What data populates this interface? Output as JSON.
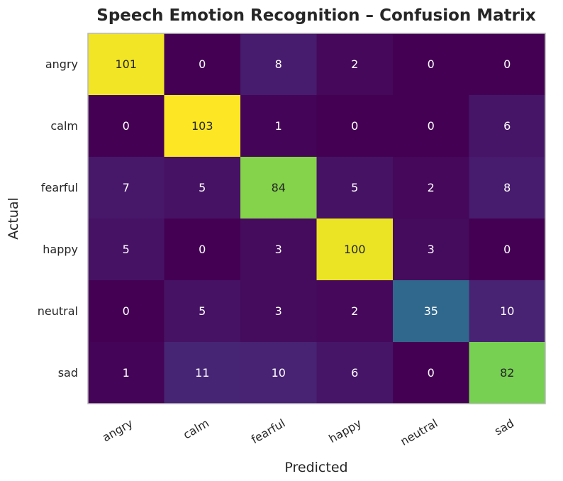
{
  "chart_data": {
    "type": "heatmap",
    "title": "Speech Emotion Recognition – Confusion Matrix",
    "xlabel": "Predicted",
    "ylabel": "Actual",
    "x_categories": [
      "angry",
      "calm",
      "fearful",
      "happy",
      "neutral",
      "sad"
    ],
    "y_categories": [
      "angry",
      "calm",
      "fearful",
      "happy",
      "neutral",
      "sad"
    ],
    "values": [
      [
        101,
        0,
        8,
        2,
        0,
        0
      ],
      [
        0,
        103,
        1,
        0,
        0,
        6
      ],
      [
        7,
        5,
        84,
        5,
        2,
        8
      ],
      [
        5,
        0,
        3,
        100,
        3,
        0
      ],
      [
        0,
        5,
        3,
        2,
        35,
        10
      ],
      [
        1,
        11,
        10,
        6,
        0,
        82
      ]
    ],
    "colormap": "viridis",
    "value_range": [
      0,
      103
    ],
    "grid": false
  }
}
